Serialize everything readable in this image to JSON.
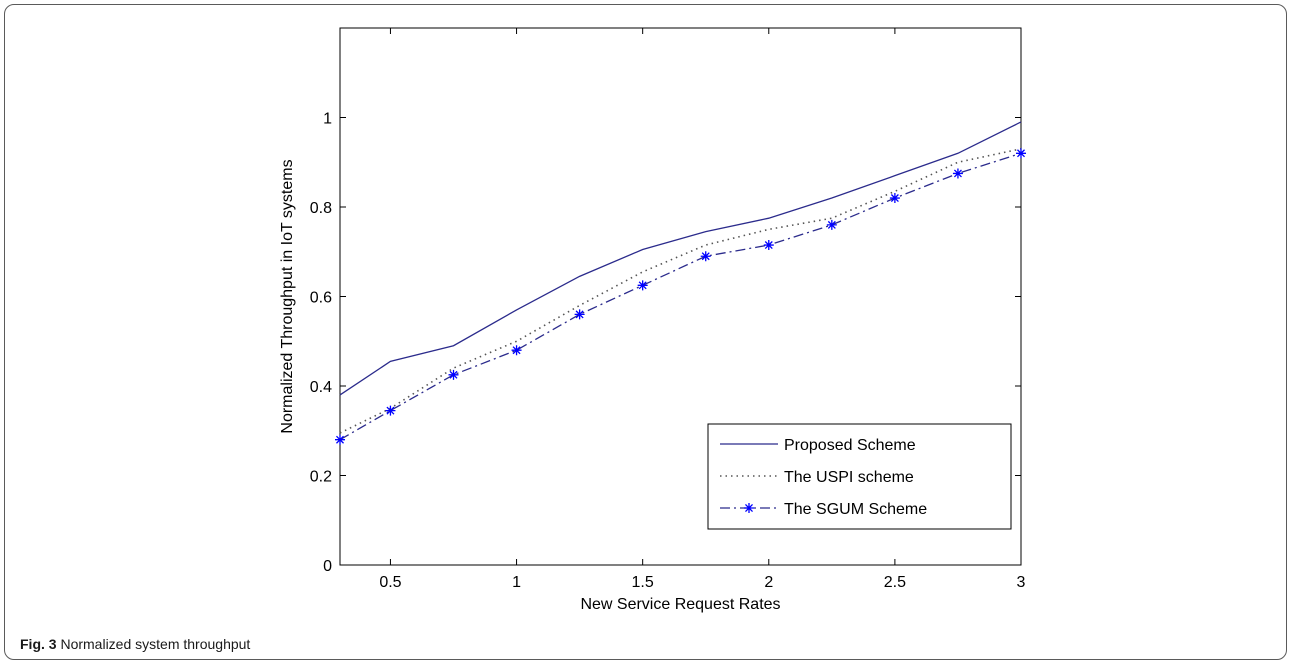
{
  "caption": {
    "label": "Fig. 3",
    "text": "Normalized system throughput"
  },
  "chart_data": {
    "type": "line",
    "xlabel": "New Service Request Rates",
    "ylabel": "Normalized Throughput in IoT systems",
    "xlim": [
      0.3,
      3
    ],
    "ylim": [
      0,
      1.2
    ],
    "x_ticks": [
      0.5,
      1,
      1.5,
      2,
      2.5,
      3
    ],
    "x_tick_labels": [
      "0.5",
      "1",
      "1.5",
      "2",
      "2.5",
      "3"
    ],
    "y_ticks": [
      0,
      0.2,
      0.4,
      0.6,
      0.8,
      1
    ],
    "y_tick_labels": [
      "0",
      "0.2",
      "0.4",
      "0.6",
      "0.8",
      "1"
    ],
    "grid": false,
    "legend_position": "bottom-right",
    "x": [
      0.3,
      0.5,
      0.75,
      1,
      1.25,
      1.5,
      1.75,
      2,
      2.25,
      2.5,
      2.75,
      3
    ],
    "series": [
      {
        "name": "Proposed Scheme",
        "color": "#2b2b8c",
        "line_style": "solid",
        "marker": "none",
        "values": [
          0.38,
          0.455,
          0.49,
          0.57,
          0.645,
          0.705,
          0.745,
          0.775,
          0.82,
          0.87,
          0.92,
          0.99
        ]
      },
      {
        "name": "The USPI scheme",
        "color": "#555555",
        "line_style": "dotted",
        "marker": "none",
        "values": [
          0.295,
          0.35,
          0.44,
          0.5,
          0.58,
          0.655,
          0.715,
          0.75,
          0.775,
          0.835,
          0.9,
          0.93
        ]
      },
      {
        "name": "The SGUM Scheme",
        "color": "#2b2b8c",
        "line_style": "dashdot",
        "marker": "star",
        "marker_color": "#0000ff",
        "values": [
          0.28,
          0.345,
          0.425,
          0.48,
          0.56,
          0.625,
          0.69,
          0.715,
          0.76,
          0.82,
          0.875,
          0.92
        ]
      }
    ]
  }
}
